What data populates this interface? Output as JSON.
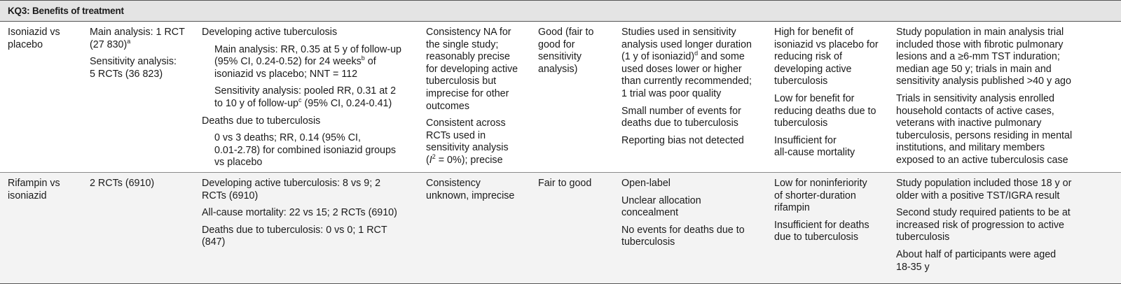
{
  "header": {
    "title": "KQ3: Benefits of treatment"
  },
  "rows": [
    {
      "comparison": [
        "Isoniazid vs",
        "placebo"
      ],
      "studies": {
        "main": [
          "Main analysis: 1 RCT",
          "(27 830)"
        ],
        "main_sup": "a",
        "sens": [
          "Sensitivity analysis:",
          "5 RCTs (36 823)"
        ]
      },
      "findings": {
        "head1": "Developing active tuberculosis",
        "main_l1": "Main analysis: RR, 0.35 at 5 y of follow-up",
        "main_l2a": "(95% CI, 0.24-0.52) for 24 weeks",
        "main_l2_sup": "b",
        "main_l2b": " of",
        "main_l3": "isoniazid vs placebo; NNT = 112",
        "sens_l1": "Sensitivity analysis: pooled RR, 0.31 at 2",
        "sens_l2a": "to 10 y of follow-up",
        "sens_l2_sup": "c",
        "sens_l2b": " (95% CI, 0.24-0.41)",
        "head2": "Deaths due to tuberculosis",
        "death": [
          "0 vs 3 deaths; RR, 0.14 (95% CI,",
          "0.01-2.78) for combined isoniazid groups",
          "vs placebo"
        ]
      },
      "consistency": {
        "p1": [
          "Consistency NA for",
          "the single study;",
          "reasonably precise",
          "for developing active",
          "tuberculosis but",
          "imprecise for other",
          "outcomes"
        ],
        "p2": [
          "Consistent across",
          "RCTs used in",
          "sensitivity analysis"
        ],
        "p2_last_open": "(",
        "p2_last_italic": "I",
        "p2_last_sup": "2",
        "p2_last_rest": " = 0%); precise"
      },
      "quality": [
        "Good (fair to",
        "good for",
        "sensitivity",
        "analysis)"
      ],
      "limitations": {
        "p1_l1": "Studies used in sensitivity",
        "p1_l2": "analysis used longer duration",
        "p1_l3a": "(1 y of isoniazid)",
        "p1_l3_sup": "d",
        "p1_l3b": " and some",
        "p1_rest": [
          "used doses lower or higher",
          "than currently recommended;",
          "1 trial was poor quality"
        ],
        "p2": [
          "Small number of events for",
          "deaths due to tuberculosis"
        ],
        "p3": [
          "Reporting bias not detected"
        ]
      },
      "strength": {
        "p1": [
          "High for benefit of",
          "isoniazid vs placebo for",
          "reducing risk of",
          "developing active",
          "tuberculosis"
        ],
        "p2": [
          "Low for benefit for",
          "reducing deaths due to",
          "tuberculosis"
        ],
        "p3": [
          "Insufficient for",
          "all-cause mortality"
        ]
      },
      "applicability": {
        "p1": [
          "Study population in main analysis trial",
          "included those with fibrotic pulmonary",
          "lesions and a ≥6-mm TST induration;",
          "median age 50 y; trials in main and",
          "sensitivity analysis published >40 y ago"
        ],
        "p2": [
          "Trials in sensitivity analysis enrolled",
          "household contacts of active cases,",
          "veterans with inactive pulmonary",
          "tuberculosis, persons residing in mental",
          "institutions, and military members",
          "exposed to an active tuberculosis case"
        ]
      }
    },
    {
      "comparison": [
        "Rifampin vs",
        "isoniazid"
      ],
      "studies": "2 RCTs (6910)",
      "findings": {
        "p1": [
          "Developing active tuberculosis: 8 vs 9; 2",
          "RCTs (6910)"
        ],
        "p2": [
          "All-cause mortality: 22 vs 15; 2 RCTs (6910)"
        ],
        "p3": [
          "Deaths due to tuberculosis: 0 vs 0; 1 RCT",
          "(847)"
        ]
      },
      "consistency": [
        "Consistency",
        "unknown, imprecise"
      ],
      "quality": "Fair to good",
      "limitations": {
        "p1": [
          "Open-label"
        ],
        "p2": [
          "Unclear allocation",
          "concealment"
        ],
        "p3": [
          "No events for deaths due to",
          "tuberculosis"
        ]
      },
      "strength": {
        "p1": [
          "Low for noninferiority",
          "of shorter-duration",
          "rifampin"
        ],
        "p2": [
          "Insufficient for deaths",
          "due to tuberculosis"
        ]
      },
      "applicability": {
        "p1": [
          "Study population included those 18 y or",
          "older with a positive TST/IGRA result"
        ],
        "p2": [
          "Second study required patients to be at",
          "increased risk of progression to active",
          "tuberculosis"
        ],
        "p3": [
          "About half of participants were aged",
          "18-35 y"
        ]
      }
    }
  ]
}
